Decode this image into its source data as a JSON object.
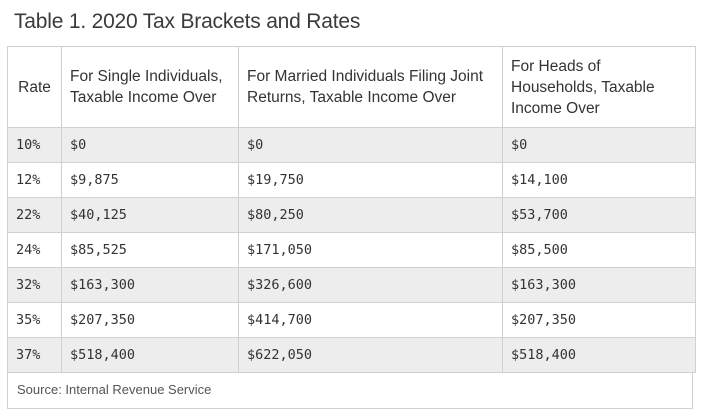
{
  "title": "Table 1. 2020 Tax Brackets and Rates",
  "table": {
    "headers": [
      "Rate",
      "For Single Individuals, Taxable Income Over",
      "For Married Individuals Filing Joint Returns, Taxable Income Over",
      "For Heads of Households, Taxable Income Over"
    ],
    "rows": [
      [
        "10%",
        "$0",
        "$0",
        "$0"
      ],
      [
        "12%",
        "$9,875",
        "$19,750",
        "$14,100"
      ],
      [
        "22%",
        "$40,125",
        "$80,250",
        "$53,700"
      ],
      [
        "24%",
        "$85,525",
        "$171,050",
        "$85,500"
      ],
      [
        "32%",
        "$163,300",
        "$326,600",
        "$163,300"
      ],
      [
        "35%",
        "$207,350",
        "$414,700",
        "$207,350"
      ],
      [
        "37%",
        "$518,400",
        "$622,050",
        "$518,400"
      ]
    ]
  },
  "source": "Source: Internal Revenue Service"
}
